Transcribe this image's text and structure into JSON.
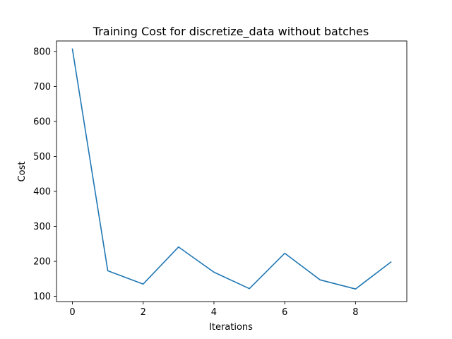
{
  "chart_data": {
    "type": "line",
    "title": "Training Cost for discretize_data without batches",
    "xlabel": "Iterations",
    "ylabel": "Cost",
    "xlim": [
      -0.45,
      9.45
    ],
    "ylim": [
      85,
      830
    ],
    "xticks": [
      0,
      2,
      4,
      6,
      8
    ],
    "yticks": [
      100,
      200,
      300,
      400,
      500,
      600,
      700,
      800
    ],
    "grid": false,
    "legend": "none",
    "line_color": "#1f77b4",
    "series": [
      {
        "x": [
          0,
          1,
          2,
          3,
          4,
          5,
          6,
          7,
          8,
          9
        ],
        "values": [
          807,
          173,
          135,
          241,
          169,
          122,
          223,
          147,
          121,
          198
        ]
      }
    ]
  }
}
